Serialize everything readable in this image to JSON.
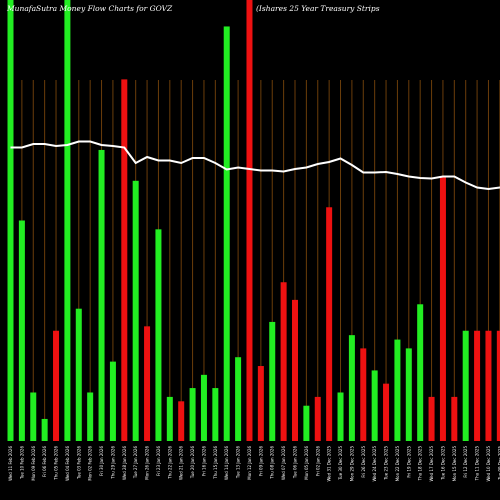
{
  "chart_data": {
    "type": "bar",
    "title": "MunafaSutra  Money Flow  Charts for GOVZ",
    "subtitle": "(Ishares 25 Year Treasury Strips",
    "grid": true,
    "ylim": [
      0,
      100
    ],
    "price_line_range": [
      0,
      100
    ],
    "categories": [
      "Wed 11 Feb",
      "Tue 10 Feb",
      "Mon 09 Feb",
      "Fri 06 Feb",
      "Thu 05 Feb",
      "Wed 04 Feb",
      "Tue 03 Feb",
      "Mon 02 Feb",
      "Fri 30 Jan",
      "Thu 29 Jan",
      "Wed 28 Jan",
      "Tue 27 Jan",
      "Mon 26 Jan",
      "Fri 23 Jan",
      "Thu 22 Jan",
      "Wed 21 Jan",
      "Tue 20 Jan",
      "Fri 16 Jan",
      "Thu 15 Jan",
      "Wed 14 Jan",
      "Tue 13 Jan",
      "Mon 12 Jan",
      "Fri 09 Jan",
      "Thu 08 Jan",
      "Wed 07 Jan",
      "Tue 06 Jan",
      "Mon 05 Jan",
      "Fri 02 Jan",
      "Wed 31 Dec",
      "Tue 30 Dec",
      "Mon 29 Dec",
      "Fri 26 Dec",
      "Wed 24 Dec",
      "Tue 23 Dec",
      "Mon 22 Dec",
      "Fri 19 Dec",
      "Thu 18 Dec",
      "Wed 17 Dec",
      "Tue 16 Dec",
      "Mon 15 Dec",
      "Fri 12 Dec",
      "Thu 11 Dec",
      "Wed 10 Dec",
      "Tue 09 Dec",
      "Mon 08 Dec"
    ],
    "tick_labels": [
      "Wed 11 Feb 2026",
      "Tue 10 Feb 2026",
      "Mon 09 Feb 2026",
      "Fri 06 Feb 2026",
      "Thu 05 Feb 2026",
      "Wed 04 Feb 2026",
      "Tue 03 Feb 2026",
      "Mon 02 Feb 2026",
      "Fri 30 Jan 2026",
      "Thu 29 Jan 2026",
      "Wed 28 Jan 2026",
      "Tue 27 Jan 2026",
      "Mon 26 Jan 2026",
      "Fri 23 Jan 2026",
      "Thu 22 Jan 2026",
      "Wed 21 Jan 2026",
      "Tue 20 Jan 2026",
      "Fri 16 Jan 2026",
      "Thu 15 Jan 2026",
      "Wed 14 Jan 2026",
      "Tue 13 Jan 2026",
      "Mon 12 Jan 2026",
      "Fri 09 Jan 2026",
      "Thu 08 Jan 2026",
      "Wed 07 Jan 2026",
      "Tue 06 Jan 2026",
      "Mon 05 Jan 2026",
      "Fri 02 Jan 2026",
      "Wed 31 Dec 2025",
      "Tue 30 Dec 2025",
      "Mon 29 Dec 2025",
      "Fri 26 Dec 2025",
      "Wed 24 Dec 2025",
      "Tue 23 Dec 2025",
      "Mon 22 Dec 2025",
      "Fri 19 Dec 2025",
      "Thu 18 Dec 2025",
      "Wed 17 Dec 2025",
      "Tue 16 Dec 2025",
      "Mon 15 Dec 2025",
      "Fri 12 Dec 2025",
      "Thu 11 Dec 2025",
      "Wed 10 Dec 2025",
      "Tue 09 Dec 2025",
      "Mon 08 Dec 2025"
    ],
    "series": [
      {
        "directions": [
          "up",
          "up",
          "up",
          "up",
          "down",
          "up",
          "up",
          "up",
          "up",
          "up",
          "down",
          "up",
          "down",
          "up",
          "up",
          "down",
          "up",
          "up",
          "up",
          "up",
          "up",
          "down",
          "down",
          "up",
          "down",
          "down",
          "up",
          "down",
          "down",
          "up",
          "up",
          "down",
          "up",
          "down",
          "up",
          "up",
          "up",
          "down",
          "down",
          "down",
          "up",
          "down",
          "down",
          "down",
          "down"
        ],
        "values": [
          100,
          50,
          11,
          5,
          25,
          100,
          30,
          11,
          66,
          18,
          82,
          59,
          26,
          48,
          10,
          9,
          12,
          15,
          12,
          94,
          19,
          100,
          17,
          27,
          36,
          32,
          8,
          10,
          53,
          11,
          24,
          21,
          16,
          13,
          23,
          21,
          31,
          10,
          60,
          10,
          25,
          25,
          25,
          25,
          25
        ]
      },
      {
        "type": "line",
        "values": [
          70.5,
          70.5,
          71.2,
          71.2,
          70.8,
          71.0,
          71.7,
          71.7,
          71.0,
          70.8,
          70.5,
          67.4,
          68.6,
          67.9,
          67.9,
          67.4,
          68.4,
          68.4,
          67.4,
          66.1,
          66.5,
          66.2,
          65.9,
          65.9,
          65.7,
          66.2,
          66.5,
          67.2,
          67.6,
          68.3,
          67.0,
          65.5,
          65.5,
          65.6,
          65.2,
          64.7,
          64.4,
          64.3,
          64.7,
          64.7,
          63.5,
          62.5,
          62.2,
          62.5,
          62.5
        ]
      }
    ],
    "colors": {
      "background": "#000000",
      "up": "#22ee22",
      "down": "#ee1111",
      "grid": "#6b3d0a",
      "line": "#ffffff",
      "text": "#ffffff"
    }
  }
}
